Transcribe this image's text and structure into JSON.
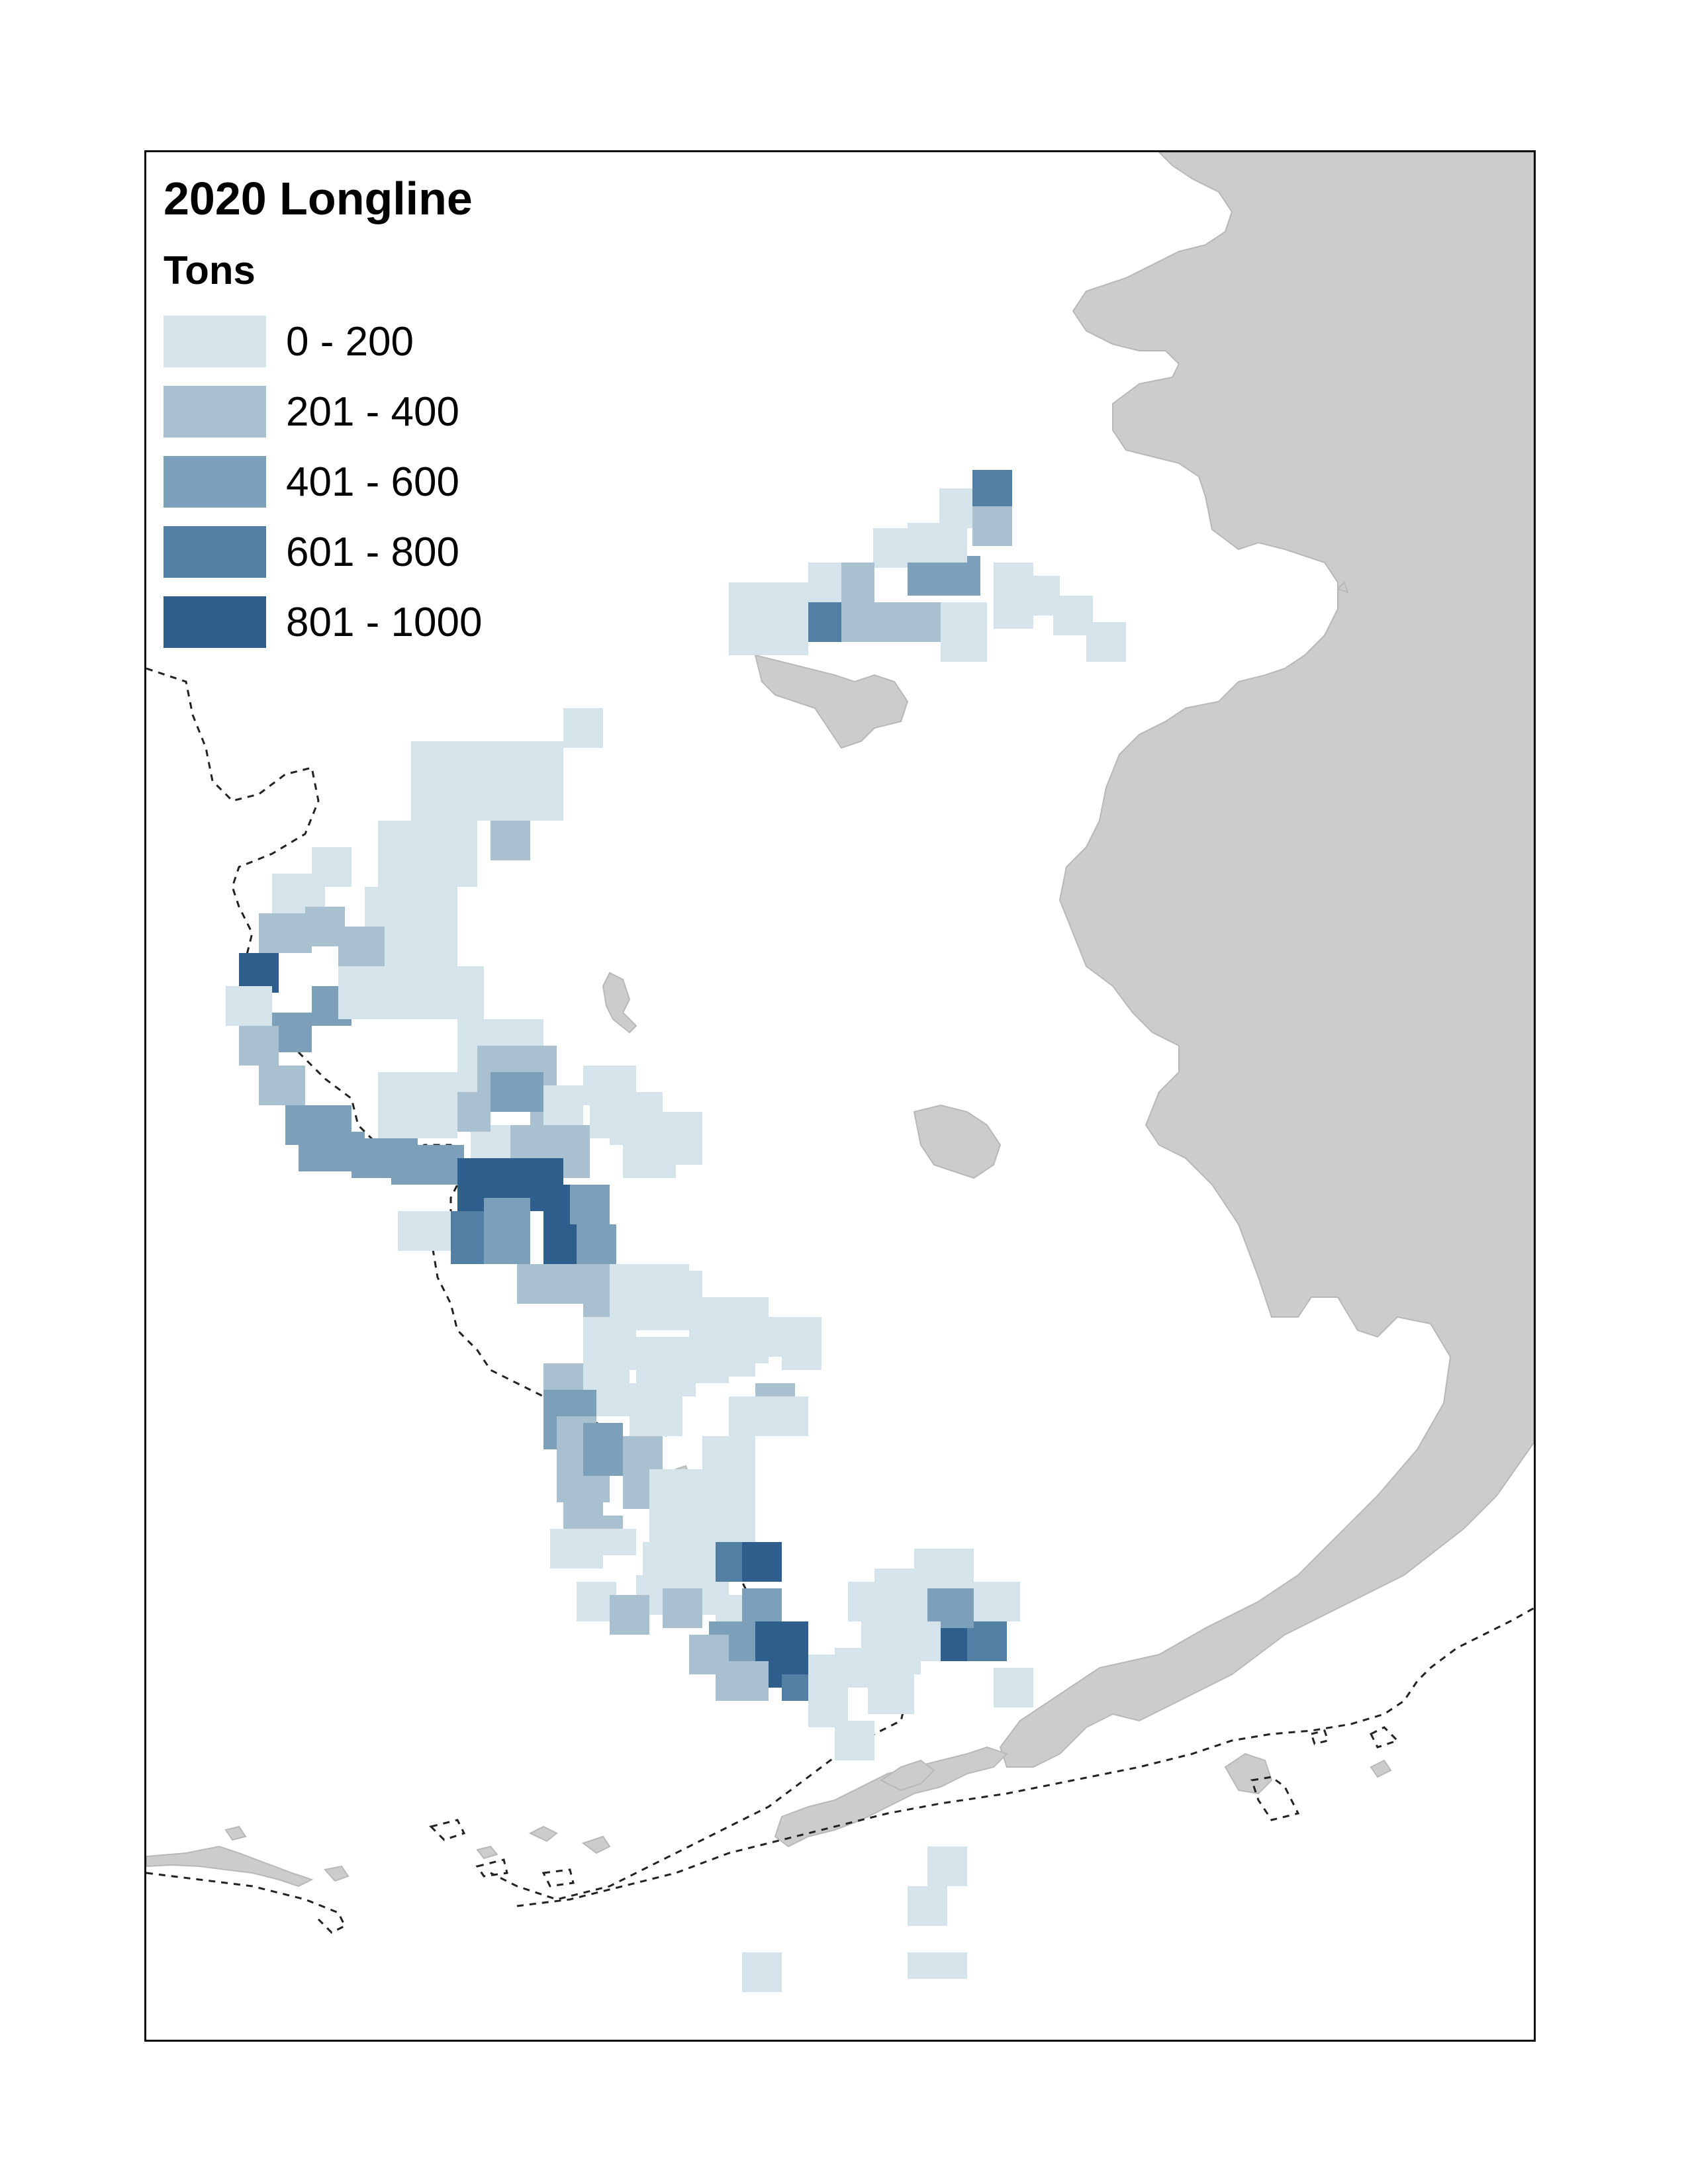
{
  "map": {
    "title": "2020 Longline",
    "legend": {
      "title": "Tons",
      "classes": [
        {
          "label": "0 - 200",
          "color": "#d4e4ea"
        },
        {
          "label": "201 - 400",
          "color": "#a9c0d0"
        },
        {
          "label": "401 - 600",
          "color": "#7c9fba"
        },
        {
          "label": "601 - 800",
          "color": "#527fa3"
        },
        {
          "label": "801 - 1000",
          "color": "#2e5e8c"
        }
      ]
    },
    "land_color": "#cccccc",
    "boundary_line_style": "dashed"
  }
}
